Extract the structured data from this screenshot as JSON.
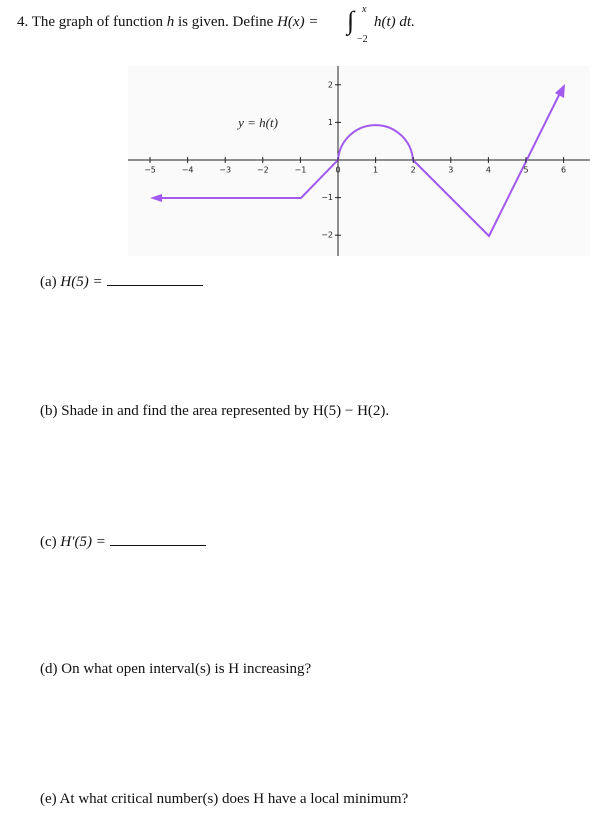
{
  "question": {
    "number": "4.",
    "text": "The graph of function",
    "var": "h",
    "text2": "is given. Define",
    "lhs": "H(x) =",
    "integral": "∫",
    "upper": "x",
    "lower": "−2",
    "integrand": "h(t) dt."
  },
  "graph": {
    "curve_label": "y = h(t)",
    "xticks": [
      "−5",
      "−4",
      "−3",
      "−2",
      "−1",
      "0",
      "1",
      "2",
      "3",
      "4",
      "5",
      "6"
    ],
    "yticks": [
      "2",
      "1",
      "−1",
      "−2"
    ]
  },
  "parts": [
    {
      "label": "(a)",
      "text": "H(5) ="
    },
    {
      "label": "(b)",
      "text": "Shade in and find the area represented by H(5) − H(2)."
    },
    {
      "label": "(c)",
      "text": "H′(5) ="
    },
    {
      "label": "(d)",
      "text": "On what open interval(s) is H increasing?"
    },
    {
      "label": "(e)",
      "text": "At what critical number(s) does H have a local minimum?"
    }
  ]
}
